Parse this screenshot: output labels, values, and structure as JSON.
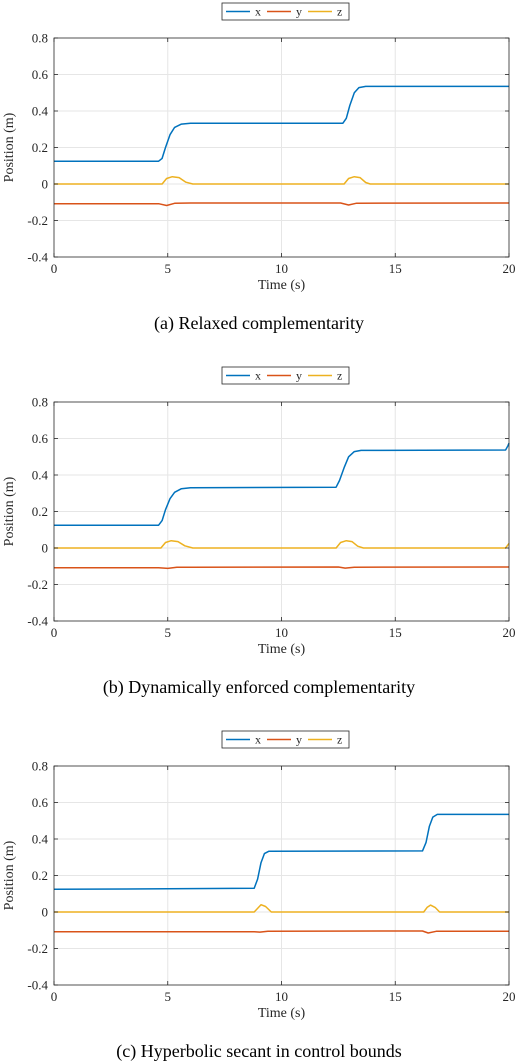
{
  "chart_data": [
    {
      "type": "line",
      "caption": "(a) Relaxed complementarity",
      "xlabel": "Time (s)",
      "ylabel": "Position (m)",
      "xlim": [
        0,
        20
      ],
      "ylim": [
        -0.4,
        0.8
      ],
      "xticks": [
        0,
        5,
        10,
        15,
        20
      ],
      "yticks": [
        -0.4,
        -0.2,
        0,
        0.2,
        0.4,
        0.6,
        0.8
      ],
      "grid": true,
      "legend": "top-center-outside-horizontal",
      "series": [
        {
          "name": "x",
          "color": "#0072BD",
          "points": [
            [
              0,
              0.125
            ],
            [
              4.6,
              0.125
            ],
            [
              4.75,
              0.14
            ],
            [
              4.9,
              0.2
            ],
            [
              5.1,
              0.27
            ],
            [
              5.3,
              0.31
            ],
            [
              5.6,
              0.328
            ],
            [
              6.0,
              0.333
            ],
            [
              12.7,
              0.333
            ],
            [
              12.85,
              0.36
            ],
            [
              13.0,
              0.43
            ],
            [
              13.2,
              0.5
            ],
            [
              13.4,
              0.528
            ],
            [
              13.7,
              0.535
            ],
            [
              20,
              0.535
            ]
          ]
        },
        {
          "name": "y",
          "color": "#D95319",
          "points": [
            [
              0,
              -0.108
            ],
            [
              4.6,
              -0.108
            ],
            [
              4.95,
              -0.118
            ],
            [
              5.3,
              -0.106
            ],
            [
              6,
              -0.104
            ],
            [
              12.6,
              -0.104
            ],
            [
              12.95,
              -0.115
            ],
            [
              13.3,
              -0.105
            ],
            [
              20,
              -0.104
            ]
          ]
        },
        {
          "name": "z",
          "color": "#EDB120",
          "points": [
            [
              0,
              0
            ],
            [
              4.75,
              0
            ],
            [
              4.95,
              0.03
            ],
            [
              5.2,
              0.04
            ],
            [
              5.5,
              0.035
            ],
            [
              5.8,
              0.01
            ],
            [
              6.1,
              0
            ],
            [
              12.75,
              0
            ],
            [
              12.95,
              0.03
            ],
            [
              13.2,
              0.04
            ],
            [
              13.45,
              0.035
            ],
            [
              13.7,
              0.008
            ],
            [
              13.9,
              0
            ],
            [
              20,
              0
            ]
          ]
        }
      ]
    },
    {
      "type": "line",
      "caption": "(b) Dynamically enforced complementarity",
      "xlabel": "Time (s)",
      "ylabel": "Position (m)",
      "xlim": [
        0,
        20
      ],
      "ylim": [
        -0.4,
        0.8
      ],
      "xticks": [
        0,
        5,
        10,
        15,
        20
      ],
      "yticks": [
        -0.4,
        -0.2,
        0,
        0.2,
        0.4,
        0.6,
        0.8
      ],
      "grid": true,
      "legend": "top-center-outside-horizontal",
      "series": [
        {
          "name": "x",
          "color": "#0072BD",
          "points": [
            [
              0,
              0.125
            ],
            [
              4.6,
              0.125
            ],
            [
              4.75,
              0.15
            ],
            [
              4.9,
              0.21
            ],
            [
              5.1,
              0.27
            ],
            [
              5.3,
              0.305
            ],
            [
              5.6,
              0.325
            ],
            [
              6.0,
              0.33
            ],
            [
              12.4,
              0.333
            ],
            [
              12.55,
              0.37
            ],
            [
              12.75,
              0.44
            ],
            [
              12.95,
              0.5
            ],
            [
              13.2,
              0.528
            ],
            [
              13.5,
              0.535
            ],
            [
              19.85,
              0.537
            ],
            [
              19.95,
              0.56
            ],
            [
              20,
              0.575
            ]
          ]
        },
        {
          "name": "y",
          "color": "#D95319",
          "points": [
            [
              0,
              -0.108
            ],
            [
              4.6,
              -0.108
            ],
            [
              5.0,
              -0.112
            ],
            [
              5.4,
              -0.106
            ],
            [
              6,
              -0.105
            ],
            [
              12.5,
              -0.104
            ],
            [
              12.8,
              -0.11
            ],
            [
              13.2,
              -0.105
            ],
            [
              20,
              -0.104
            ]
          ]
        },
        {
          "name": "z",
          "color": "#EDB120",
          "points": [
            [
              0,
              0
            ],
            [
              4.7,
              0
            ],
            [
              4.9,
              0.03
            ],
            [
              5.15,
              0.04
            ],
            [
              5.45,
              0.035
            ],
            [
              5.75,
              0.012
            ],
            [
              6.1,
              0
            ],
            [
              12.4,
              0
            ],
            [
              12.6,
              0.03
            ],
            [
              12.85,
              0.04
            ],
            [
              13.1,
              0.035
            ],
            [
              13.35,
              0.01
            ],
            [
              13.6,
              0
            ],
            [
              19.85,
              0
            ],
            [
              20,
              0.025
            ]
          ]
        }
      ]
    },
    {
      "type": "line",
      "caption": "(c) Hyperbolic secant in control bounds",
      "xlabel": "Time (s)",
      "ylabel": "Position (m)",
      "xlim": [
        0,
        20
      ],
      "ylim": [
        -0.4,
        0.8
      ],
      "xticks": [
        0,
        5,
        10,
        15,
        20
      ],
      "yticks": [
        -0.4,
        -0.2,
        0,
        0.2,
        0.4,
        0.6,
        0.8
      ],
      "grid": true,
      "legend": "top-center-outside-horizontal",
      "series": [
        {
          "name": "x",
          "color": "#0072BD",
          "points": [
            [
              0,
              0.125
            ],
            [
              5,
              0.127
            ],
            [
              8.8,
              0.13
            ],
            [
              8.95,
              0.18
            ],
            [
              9.1,
              0.27
            ],
            [
              9.25,
              0.32
            ],
            [
              9.45,
              0.333
            ],
            [
              16.2,
              0.335
            ],
            [
              16.35,
              0.38
            ],
            [
              16.5,
              0.47
            ],
            [
              16.65,
              0.52
            ],
            [
              16.85,
              0.535
            ],
            [
              20,
              0.535
            ]
          ]
        },
        {
          "name": "y",
          "color": "#D95319",
          "points": [
            [
              0,
              -0.108
            ],
            [
              8.8,
              -0.108
            ],
            [
              9.05,
              -0.11
            ],
            [
              9.4,
              -0.105
            ],
            [
              16.2,
              -0.104
            ],
            [
              16.45,
              -0.115
            ],
            [
              16.8,
              -0.106
            ],
            [
              20,
              -0.105
            ]
          ]
        },
        {
          "name": "z",
          "color": "#EDB120",
          "points": [
            [
              0,
              0
            ],
            [
              8.8,
              0
            ],
            [
              8.95,
              0.02
            ],
            [
              9.1,
              0.04
            ],
            [
              9.3,
              0.03
            ],
            [
              9.55,
              0
            ],
            [
              16.25,
              0
            ],
            [
              16.4,
              0.025
            ],
            [
              16.55,
              0.038
            ],
            [
              16.75,
              0.025
            ],
            [
              16.95,
              0
            ],
            [
              20,
              0
            ]
          ]
        }
      ]
    }
  ]
}
